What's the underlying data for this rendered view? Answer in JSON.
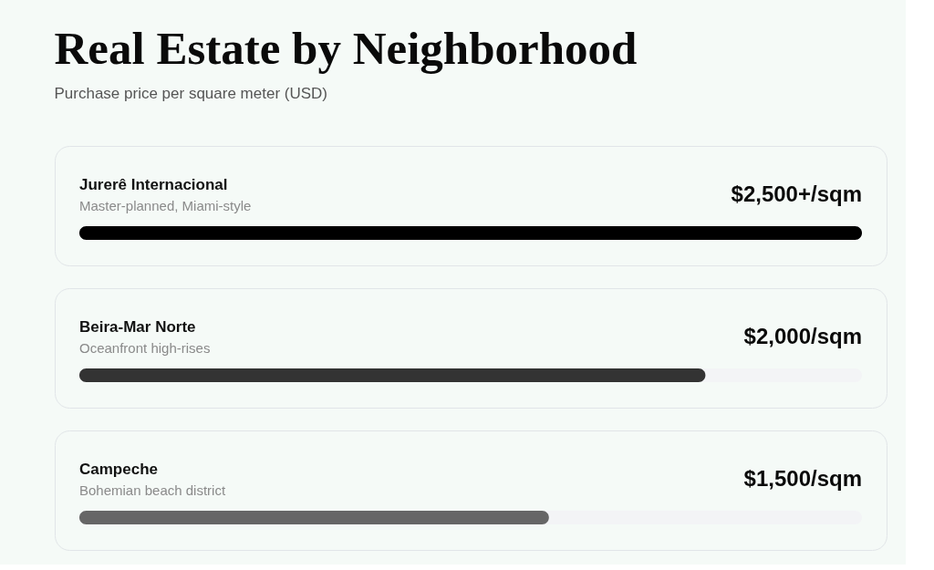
{
  "chart_data": {
    "type": "bar",
    "orientation": "horizontal",
    "title": "Real Estate by Neighborhood",
    "subtitle": "Purchase price per square meter (USD)",
    "categories": [
      "Jurerê Internacional",
      "Beira-Mar Norte",
      "Campeche"
    ],
    "values": [
      2500,
      2000,
      1500
    ],
    "colors": [
      "#000000",
      "#333333",
      "#666666"
    ],
    "value_labels": [
      "$2,500+/sqm",
      "$2,000/sqm",
      "$1,500/sqm"
    ],
    "annotations": [
      "Master-planned, Miami-style",
      "Oceanfront high-rises",
      "Bohemian beach district"
    ],
    "tick_labels": false
  }
}
